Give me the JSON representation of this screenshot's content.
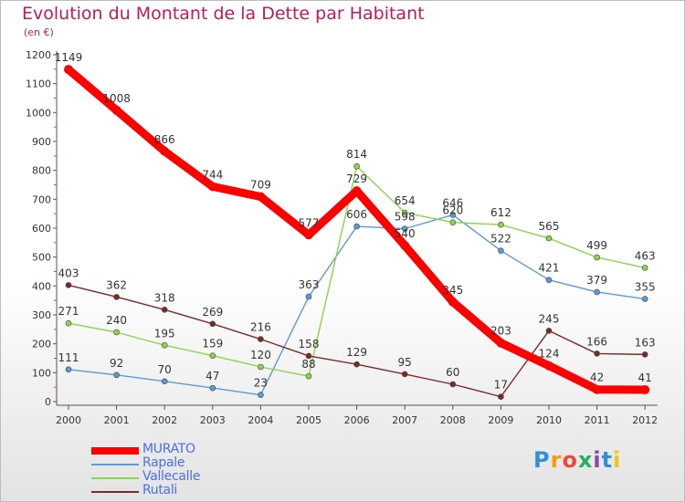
{
  "header": {
    "title": "Evolution du Montant de la Dette par Habitant",
    "subtitle": "(en €)"
  },
  "logo": {
    "text": "Proxiti",
    "letters": [
      "P",
      "r",
      "o",
      "x",
      "i",
      "t",
      "i"
    ]
  },
  "chart_data": {
    "type": "line",
    "x": [
      "2000",
      "2001",
      "2002",
      "2003",
      "2004",
      "2005",
      "2006",
      "2007",
      "2008",
      "2009",
      "2010",
      "2011",
      "2012"
    ],
    "ylim": [
      0,
      1200
    ],
    "yticks": [
      0,
      100,
      200,
      300,
      400,
      500,
      600,
      700,
      800,
      900,
      1000,
      1100,
      1200
    ],
    "grid": false,
    "legend_position": "bottom-left",
    "series": [
      {
        "name": "MURATO",
        "color": "#ff0000",
        "values": [
          1149,
          1008,
          866,
          744,
          709,
          577,
          729,
          540,
          345,
          203,
          124,
          42,
          41
        ]
      },
      {
        "name": "Rapale",
        "color": "#5b9bd5",
        "values": [
          111,
          92,
          70,
          47,
          23,
          363,
          606,
          598,
          646,
          522,
          421,
          379,
          355
        ]
      },
      {
        "name": "Vallecalle",
        "color": "#8cd44c",
        "values": [
          271,
          240,
          195,
          159,
          120,
          88,
          814,
          654,
          620,
          612,
          565,
          499,
          463
        ]
      },
      {
        "name": "Rutali",
        "color": "#7b2a2a",
        "values": [
          403,
          362,
          318,
          269,
          216,
          158,
          129,
          95,
          60,
          17,
          245,
          166,
          163
        ]
      }
    ]
  }
}
